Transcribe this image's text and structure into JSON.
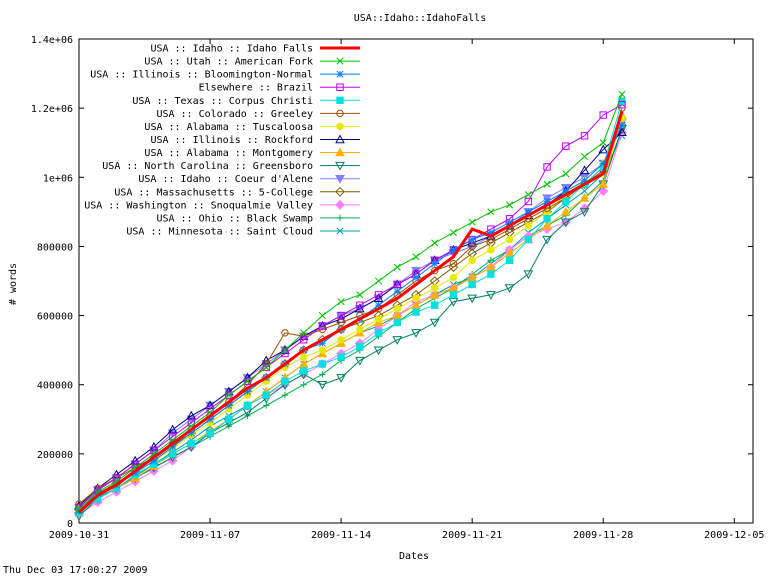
{
  "chart_data": {
    "type": "line",
    "title": "USA::Idaho::IdahoFalls",
    "xlabel": "Dates",
    "ylabel": "# words",
    "footer": "Thu Dec 03 17:00:27 2009",
    "xlim": [
      0,
      36
    ],
    "ylim": [
      0,
      1400000
    ],
    "x_ticks": [
      {
        "x": 0,
        "label": "2009-10-31"
      },
      {
        "x": 7,
        "label": "2009-11-07"
      },
      {
        "x": 14,
        "label": "2009-11-14"
      },
      {
        "x": 21,
        "label": "2009-11-21"
      },
      {
        "x": 28,
        "label": "2009-11-28"
      },
      {
        "x": 35,
        "label": "2009-12-05"
      }
    ],
    "y_ticks": [
      {
        "y": 0,
        "label": "0"
      },
      {
        "y": 200000,
        "label": "200000"
      },
      {
        "y": 400000,
        "label": "400000"
      },
      {
        "y": 600000,
        "label": "600000"
      },
      {
        "y": 800000,
        "label": "800000"
      },
      {
        "y": 1000000,
        "label": "1e+06"
      },
      {
        "y": 1200000,
        "label": "1.2e+06"
      },
      {
        "y": 1400000,
        "label": "1.4e+06"
      }
    ],
    "legend_position": "top-left",
    "series": [
      {
        "name": "USA :: Idaho :: Idaho Falls",
        "color": "#ff0000",
        "marker": "none",
        "width": 3,
        "x": [
          0,
          1,
          2,
          3,
          4,
          5,
          6,
          7,
          8,
          9,
          10,
          11,
          12,
          13,
          14,
          15,
          16,
          17,
          18,
          19,
          20,
          21,
          22,
          23,
          24,
          25,
          26,
          27,
          28,
          29
        ],
        "y": [
          30000,
          80000,
          110000,
          150000,
          190000,
          230000,
          270000,
          310000,
          350000,
          390000,
          420000,
          460000,
          500000,
          530000,
          560000,
          590000,
          620000,
          650000,
          690000,
          730000,
          770000,
          850000,
          830000,
          860000,
          890000,
          920000,
          950000,
          980000,
          1010000,
          1190000
        ]
      },
      {
        "name": "USA :: Utah :: American Fork",
        "color": "#00c000",
        "marker": "x",
        "x": [
          0,
          1,
          2,
          3,
          4,
          5,
          6,
          7,
          8,
          9,
          10,
          11,
          12,
          13,
          14,
          15,
          16,
          17,
          18,
          19,
          20,
          21,
          22,
          23,
          24,
          25,
          26,
          27,
          28,
          29
        ],
        "y": [
          40000,
          90000,
          120000,
          160000,
          200000,
          240000,
          280000,
          320000,
          370000,
          410000,
          450000,
          500000,
          550000,
          600000,
          640000,
          660000,
          700000,
          740000,
          770000,
          810000,
          840000,
          870000,
          900000,
          920000,
          950000,
          980000,
          1010000,
          1060000,
          1100000,
          1240000
        ]
      },
      {
        "name": "USA :: Illinois :: Bloomington-Normal",
        "color": "#0080ff",
        "marker": "star",
        "x": [
          0,
          1,
          2,
          3,
          4,
          5,
          6,
          7,
          8,
          9,
          10,
          11,
          12,
          13,
          14,
          15,
          16,
          17,
          18,
          19,
          20,
          21,
          22,
          23,
          24,
          25,
          26,
          27,
          28,
          29
        ],
        "y": [
          35000,
          85000,
          110000,
          145000,
          180000,
          220000,
          260000,
          300000,
          340000,
          380000,
          420000,
          460000,
          500000,
          520000,
          560000,
          590000,
          630000,
          670000,
          710000,
          750000,
          790000,
          820000,
          840000,
          870000,
          900000,
          930000,
          960000,
          990000,
          1040000,
          1150000
        ]
      },
      {
        "name": "Elsewhere :: Brazil",
        "color": "#c000ff",
        "marker": "square",
        "x": [
          0,
          1,
          2,
          3,
          4,
          5,
          6,
          7,
          8,
          9,
          10,
          11,
          12,
          13,
          14,
          15,
          16,
          17,
          18,
          19,
          20,
          21,
          22,
          23,
          24,
          25,
          26,
          27,
          28,
          29
        ],
        "y": [
          45000,
          95000,
          130000,
          170000,
          210000,
          250000,
          290000,
          330000,
          370000,
          410000,
          450000,
          490000,
          530000,
          570000,
          600000,
          630000,
          660000,
          690000,
          720000,
          760000,
          790000,
          820000,
          850000,
          880000,
          930000,
          1030000,
          1090000,
          1120000,
          1180000,
          1210000
        ]
      },
      {
        "name": "USA :: Texas :: Corpus Christi",
        "color": "#00e0e0",
        "marker": "filled-square",
        "x": [
          0,
          1,
          2,
          3,
          4,
          5,
          6,
          7,
          8,
          9,
          10,
          11,
          12,
          13,
          14,
          15,
          16,
          17,
          18,
          19,
          20,
          21,
          22,
          23,
          24,
          25,
          26,
          27,
          28,
          29
        ],
        "y": [
          30000,
          70000,
          100000,
          140000,
          170000,
          200000,
          230000,
          260000,
          300000,
          340000,
          370000,
          410000,
          440000,
          460000,
          480000,
          510000,
          550000,
          580000,
          610000,
          630000,
          660000,
          690000,
          720000,
          760000,
          820000,
          880000,
          930000,
          980000,
          1030000,
          1220000
        ]
      },
      {
        "name": "USA :: Colorado :: Greeley",
        "color": "#a05000",
        "marker": "circle",
        "x": [
          0,
          1,
          2,
          3,
          4,
          5,
          6,
          7,
          8,
          9,
          10,
          11,
          12,
          13,
          14,
          15,
          16,
          17,
          18,
          19,
          20,
          21,
          22,
          23,
          24,
          25,
          26,
          27,
          28,
          29
        ],
        "y": [
          55000,
          100000,
          130000,
          160000,
          190000,
          230000,
          270000,
          310000,
          350000,
          400000,
          460000,
          550000,
          540000,
          560000,
          580000,
          600000,
          620000,
          660000,
          700000,
          730000,
          750000,
          800000,
          820000,
          850000,
          880000,
          910000,
          940000,
          980000,
          1020000,
          1200000
        ]
      },
      {
        "name": "USA :: Alabama :: Tuscaloosa",
        "color": "#e8e800",
        "marker": "filled-circle",
        "x": [
          0,
          1,
          2,
          3,
          4,
          5,
          6,
          7,
          8,
          9,
          10,
          11,
          12,
          13,
          14,
          15,
          16,
          17,
          18,
          19,
          20,
          21,
          22,
          23,
          24,
          25,
          26,
          27,
          28,
          29
        ],
        "y": [
          40000,
          80000,
          110000,
          145000,
          180000,
          215000,
          255000,
          290000,
          330000,
          370000,
          410000,
          450000,
          480000,
          500000,
          530000,
          560000,
          590000,
          620000,
          650000,
          680000,
          710000,
          760000,
          790000,
          820000,
          860000,
          900000,
          950000,
          990000,
          1040000,
          1170000
        ]
      },
      {
        "name": "USA :: Illinois :: Rockford",
        "color": "#000080",
        "marker": "triangle",
        "x": [
          0,
          1,
          2,
          3,
          4,
          5,
          6,
          7,
          8,
          9,
          10,
          11,
          12,
          13,
          14,
          15,
          16,
          17,
          18,
          19,
          20,
          21,
          22,
          23,
          24,
          25,
          26,
          27,
          28,
          29
        ],
        "y": [
          50000,
          100000,
          140000,
          180000,
          220000,
          270000,
          310000,
          340000,
          380000,
          420000,
          470000,
          500000,
          540000,
          570000,
          590000,
          620000,
          650000,
          690000,
          720000,
          760000,
          790000,
          810000,
          830000,
          860000,
          890000,
          920000,
          960000,
          1020000,
          1080000,
          1130000
        ]
      },
      {
        "name": "USA :: Alabama :: Montgomery",
        "color": "#ffb000",
        "marker": "filled-triangle",
        "x": [
          0,
          1,
          2,
          3,
          4,
          5,
          6,
          7,
          8,
          9,
          10,
          11,
          12,
          13,
          14,
          15,
          16,
          17,
          18,
          19,
          20,
          21,
          22,
          23,
          24,
          25,
          26,
          27,
          28,
          29
        ],
        "y": [
          30000,
          70000,
          100000,
          130000,
          165000,
          200000,
          230000,
          265000,
          300000,
          340000,
          380000,
          420000,
          460000,
          490000,
          520000,
          550000,
          580000,
          600000,
          630000,
          660000,
          680000,
          710000,
          740000,
          780000,
          820000,
          860000,
          900000,
          940000,
          980000,
          1180000
        ]
      },
      {
        "name": "USA :: North Carolina :: Greensboro",
        "color": "#008060",
        "marker": "down-triangle",
        "x": [
          0,
          1,
          2,
          3,
          4,
          5,
          6,
          7,
          8,
          9,
          10,
          11,
          12,
          13,
          14,
          15,
          16,
          17,
          18,
          19,
          20,
          21,
          22,
          23,
          24,
          25,
          26,
          27,
          28,
          29
        ],
        "y": [
          20000,
          70000,
          100000,
          130000,
          160000,
          190000,
          220000,
          260000,
          290000,
          320000,
          360000,
          400000,
          430000,
          400000,
          420000,
          470000,
          500000,
          530000,
          550000,
          580000,
          640000,
          650000,
          660000,
          680000,
          720000,
          820000,
          870000,
          900000,
          980000,
          1140000
        ]
      },
      {
        "name": "USA :: Idaho :: Coeur d'Alene",
        "color": "#8080ff",
        "marker": "filled-down-triangle",
        "x": [
          0,
          1,
          2,
          3,
          4,
          5,
          6,
          7,
          8,
          9,
          10,
          11,
          12,
          13,
          14,
          15,
          16,
          17,
          18,
          19,
          20,
          21,
          22,
          23,
          24,
          25,
          26,
          27,
          28,
          29
        ],
        "y": [
          45000,
          95000,
          130000,
          170000,
          210000,
          260000,
          300000,
          340000,
          380000,
          420000,
          460000,
          500000,
          540000,
          570000,
          600000,
          620000,
          650000,
          690000,
          730000,
          760000,
          780000,
          800000,
          830000,
          860000,
          900000,
          940000,
          970000,
          1000000,
          1040000,
          1160000
        ]
      },
      {
        "name": "USA :: Massachusetts :: 5-College",
        "color": "#806000",
        "marker": "diamond",
        "x": [
          0,
          1,
          2,
          3,
          4,
          5,
          6,
          7,
          8,
          9,
          10,
          11,
          12,
          13,
          14,
          15,
          16,
          17,
          18,
          19,
          20,
          21,
          22,
          23,
          24,
          25,
          26,
          27,
          28,
          29
        ],
        "y": [
          40000,
          85000,
          115000,
          150000,
          185000,
          225000,
          260000,
          300000,
          340000,
          380000,
          420000,
          460000,
          500000,
          530000,
          560000,
          580000,
          600000,
          630000,
          660000,
          700000,
          740000,
          780000,
          810000,
          840000,
          870000,
          900000,
          940000,
          980000,
          1030000,
          1150000
        ]
      },
      {
        "name": "USA :: Washington :: Snoqualmie Valley",
        "color": "#ff80ff",
        "marker": "filled-diamond",
        "x": [
          0,
          1,
          2,
          3,
          4,
          5,
          6,
          7,
          8,
          9,
          10,
          11,
          12,
          13,
          14,
          15,
          16,
          17,
          18,
          19,
          20,
          21,
          22,
          23,
          24,
          25,
          26,
          27,
          28,
          29
        ],
        "y": [
          25000,
          60000,
          90000,
          120000,
          150000,
          180000,
          220000,
          260000,
          300000,
          340000,
          370000,
          400000,
          430000,
          460000,
          490000,
          520000,
          560000,
          600000,
          640000,
          660000,
          680000,
          710000,
          740000,
          790000,
          830000,
          850000,
          870000,
          910000,
          960000,
          1130000
        ]
      },
      {
        "name": "USA :: Ohio :: Black Swamp",
        "color": "#00b050",
        "marker": "plus",
        "x": [
          0,
          1,
          2,
          3,
          4,
          5,
          6,
          7,
          8,
          9,
          10,
          11,
          12,
          13,
          14,
          15,
          16,
          17,
          18,
          19,
          20,
          21,
          22,
          23,
          24,
          25,
          26,
          27,
          28,
          29
        ],
        "y": [
          30000,
          70000,
          100000,
          130000,
          160000,
          190000,
          220000,
          250000,
          280000,
          310000,
          340000,
          370000,
          400000,
          430000,
          470000,
          500000,
          540000,
          580000,
          620000,
          650000,
          680000,
          720000,
          760000,
          790000,
          830000,
          860000,
          890000,
          940000,
          990000,
          1140000
        ]
      },
      {
        "name": "USA :: Minnesota :: Saint Cloud",
        "color": "#00a0a0",
        "marker": "x",
        "x": [
          0,
          1,
          2,
          3,
          4,
          5,
          6,
          7,
          8,
          9,
          10,
          11,
          12,
          13,
          14,
          15,
          16,
          17,
          18,
          19,
          20,
          21,
          22,
          23,
          24,
          25,
          26,
          27,
          28,
          29
        ],
        "y": [
          35000,
          75000,
          100000,
          135000,
          170000,
          205000,
          240000,
          280000,
          310000,
          340000,
          380000,
          420000,
          460000,
          490000,
          520000,
          550000,
          570000,
          600000,
          630000,
          660000,
          690000,
          710000,
          750000,
          790000,
          840000,
          880000,
          920000,
          960000,
          1010000,
          1120000
        ]
      }
    ]
  }
}
